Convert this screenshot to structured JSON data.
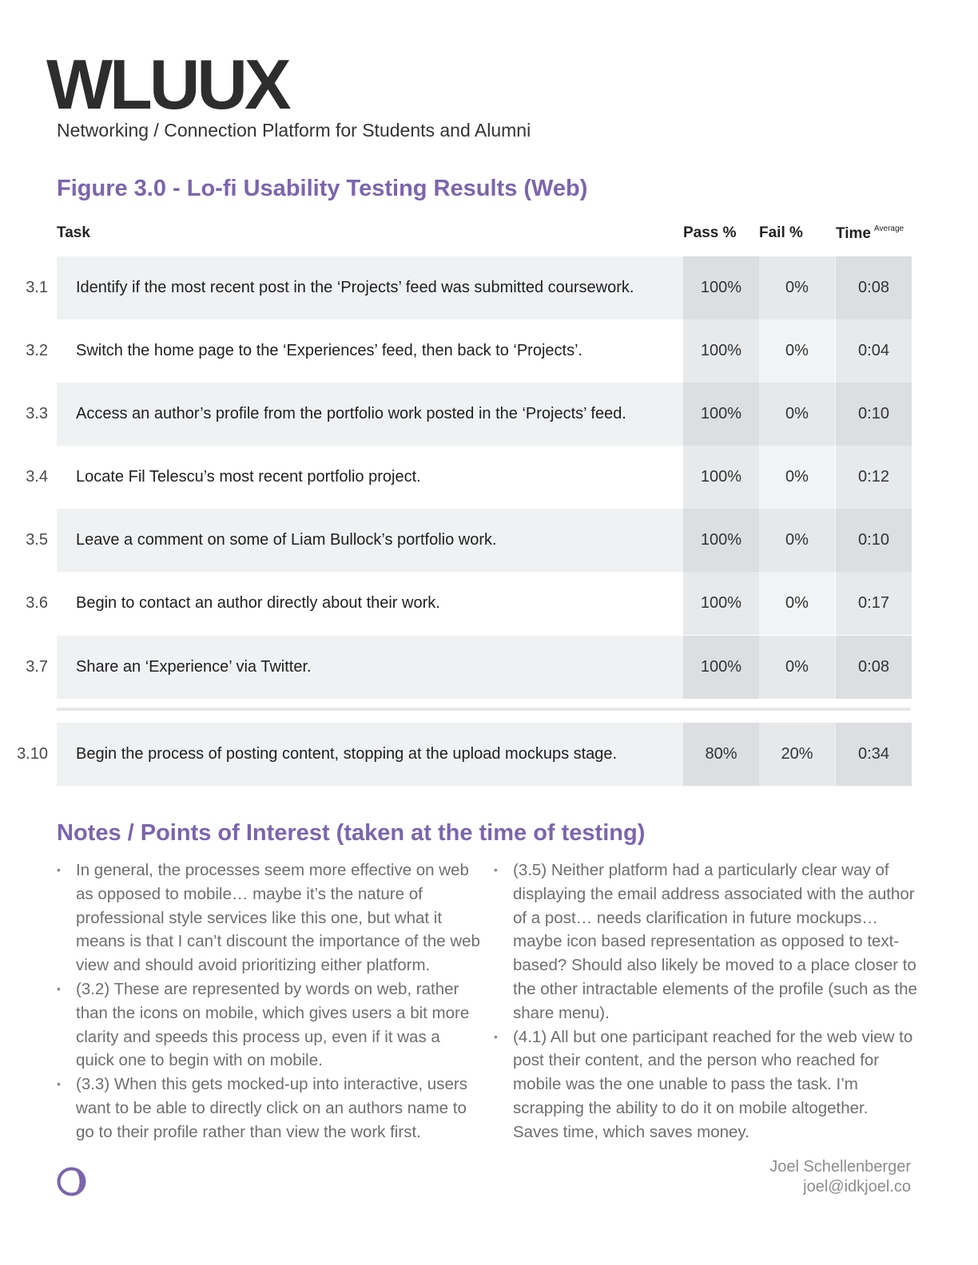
{
  "header": {
    "brand": "WLUUX",
    "subtitle": "Networking / Connection Platform for Students and Alumni"
  },
  "figure": {
    "title": "Figure 3.0 - Lo-fi Usability Testing Results (Web)"
  },
  "table": {
    "headers": {
      "task": "Task",
      "pass": "Pass %",
      "fail": "Fail %",
      "time": "Time",
      "time_sup": "Average"
    },
    "rows": [
      {
        "num": "3.1",
        "task": "Identify if the most recent post in the ‘Projects’ feed was submitted coursework.",
        "pass": "100%",
        "fail": "0%",
        "time": "0:08"
      },
      {
        "num": "3.2",
        "task": "Switch the home page to the ‘Experiences’ feed, then back to ‘Projects’.",
        "pass": "100%",
        "fail": "0%",
        "time": "0:04"
      },
      {
        "num": "3.3",
        "task": "Access an author’s profile from the portfolio work posted in the ‘Projects’ feed.",
        "pass": "100%",
        "fail": "0%",
        "time": "0:10"
      },
      {
        "num": "3.4",
        "task": "Locate Fil Telescu’s most recent portfolio project.",
        "pass": "100%",
        "fail": "0%",
        "time": "0:12"
      },
      {
        "num": "3.5",
        "task": "Leave a comment on some of Liam Bullock’s portfolio work.",
        "pass": "100%",
        "fail": "0%",
        "time": "0:10"
      },
      {
        "num": "3.6",
        "task": "Begin to contact an author directly about their work.",
        "pass": "100%",
        "fail": "0%",
        "time": "0:17"
      },
      {
        "num": "3.7",
        "task": "Share an ‘Experience’ via Twitter.",
        "pass": "100%",
        "fail": "0%",
        "time": "0:08"
      }
    ],
    "extra_row": {
      "num": "3.10",
      "task": "Begin the process of posting content, stopping at the upload mockups stage.",
      "pass": "80%",
      "fail": "20%",
      "time": "0:34"
    }
  },
  "notes": {
    "title": "Notes / Points of Interest (taken at the time of testing)",
    "left": [
      "In general, the processes seem more effective on web as opposed to mobile… maybe it’s the nature of professional style services like this one, but what it means is that I can’t discount the importance of the web view and should avoid prioritizing either platform.",
      "(3.2) These are represented by words on web, rather than the icons on mobile, which gives users a bit more clarity and speeds this process up, even if it was a quick one to begin with on mobile.",
      "(3.3) When this gets mocked-up into interactive, users want to be able to directly click on an authors name to go to their profile rather than view the work first."
    ],
    "right": [
      "(3.5) Neither platform had a particularly clear way of displaying the email address associated with the author of a post… needs clarification in future mockups… maybe icon based representation as opposed to text-based? Should also likely be moved to a place closer to the other intractable elements of the profile (such as the share menu).",
      "(4.1) All but one participant reached for the web view to post their content, and the person who reached for mobile was the one unable to pass the task. I’m scrapping the ability to do it on mobile altogether. Saves time, which saves money."
    ]
  },
  "footer": {
    "name": "Joel Schellenberger",
    "email": "joel@idkjoel.co",
    "logo_icon": "crescent-circle-logo-icon"
  },
  "colors": {
    "accent": "#7b65ad",
    "row_shade": "#f0f1f3",
    "cell_shade": "#dcdee1"
  }
}
